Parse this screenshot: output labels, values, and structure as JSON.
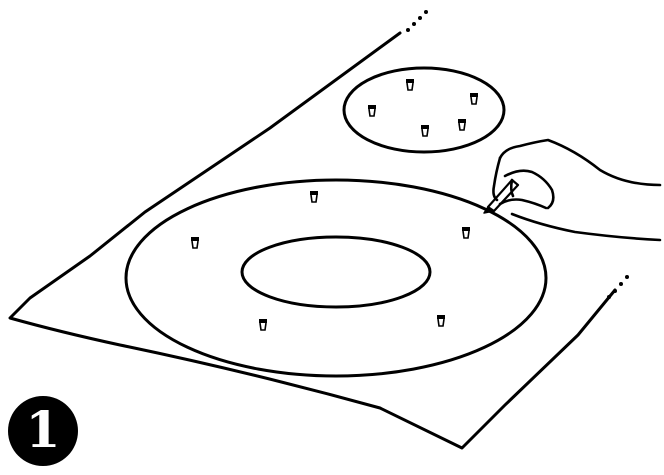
{
  "step": {
    "number": "1"
  },
  "colors": {
    "ink": "#000000",
    "paper": "#ffffff"
  },
  "icons": {
    "pin": "pin-icon",
    "hand": "hand-icon",
    "pencil": "pencil-icon",
    "continuation": "dots-icon"
  }
}
